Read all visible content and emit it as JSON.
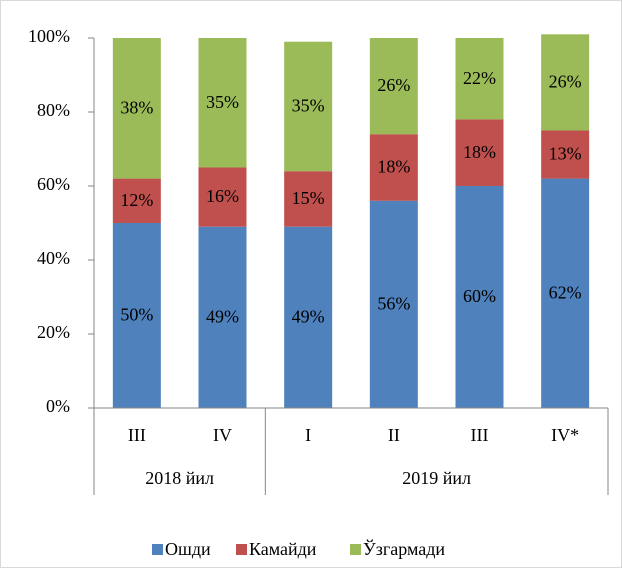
{
  "chart_data": {
    "type": "stacked_bar",
    "groups": [
      {
        "name": "2018 йил",
        "categories": [
          "III",
          "IV"
        ]
      },
      {
        "name": "2019 йил",
        "categories": [
          "I",
          "II",
          "III",
          "IV*"
        ]
      }
    ],
    "series": [
      {
        "name": "Ошди",
        "color": "#4f81bd",
        "values": [
          50,
          49,
          49,
          56,
          60,
          62
        ],
        "value_labels": [
          "50%",
          "49%",
          "49%",
          "56%",
          "60%",
          "62%"
        ]
      },
      {
        "name": "Камайди",
        "color": "#c0504d",
        "values": [
          12,
          16,
          15,
          18,
          18,
          13
        ],
        "value_labels": [
          "12%",
          "16%",
          "15%",
          "18%",
          "18%",
          "13%"
        ]
      },
      {
        "name": "Ўзгармади",
        "color": "#9bbb59",
        "values": [
          38,
          35,
          35,
          26,
          22,
          26
        ],
        "value_labels": [
          "38%",
          "35%",
          "35%",
          "26%",
          "22%",
          "26%"
        ]
      }
    ],
    "ylim": [
      0,
      100
    ],
    "yticks": [
      {
        "value": 0,
        "label": "0%"
      },
      {
        "value": 20,
        "label": "20%"
      },
      {
        "value": 40,
        "label": "40%"
      },
      {
        "value": 60,
        "label": "60%"
      },
      {
        "value": 80,
        "label": "80%"
      },
      {
        "value": 100,
        "label": "100%"
      }
    ],
    "legend": "bottom"
  }
}
